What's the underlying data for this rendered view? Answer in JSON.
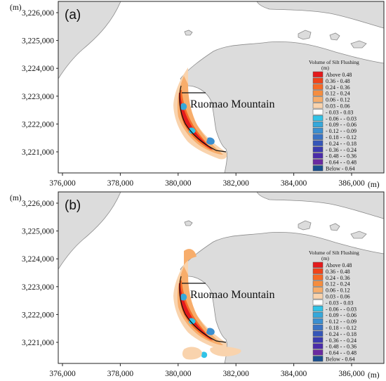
{
  "panels": [
    {
      "label": "(a)",
      "place_label": "Ruomao Mountain",
      "y_unit": "(m)",
      "x_unit": "(m)",
      "y_ticks": [
        "3,226,000",
        "3,225,000",
        "3,224,000",
        "3,223,000",
        "3,222,000",
        "3,221,000"
      ],
      "x_ticks": [
        "376,000",
        "378,000",
        "380,000",
        "382,000",
        "384,000",
        "386,000"
      ]
    },
    {
      "label": "(b)",
      "place_label": "Ruomao Mountain",
      "y_unit": "(m)",
      "x_unit": "(m)",
      "y_ticks": [
        "3,226,000",
        "3,225,000",
        "3,224,000",
        "3,223,000",
        "3,222,000",
        "3,221,000"
      ],
      "x_ticks": [
        "376,000",
        "378,000",
        "380,000",
        "382,000",
        "384,000",
        "386,000"
      ]
    }
  ],
  "legend": {
    "title": "Volume of Silt Flushing",
    "unit": "(m)",
    "items": [
      {
        "label": "Above 0.48",
        "color": "#e41a1c"
      },
      {
        "label": "0.36 - 0.48",
        "color": "#f0431a"
      },
      {
        "label": "0.24 - 0.36",
        "color": "#f66a26"
      },
      {
        "label": "0.12 - 0.24",
        "color": "#f58d3f"
      },
      {
        "label": "0.06 - 0.12",
        "color": "#f7ad6b"
      },
      {
        "label": "0.03 - 0.06",
        "color": "#f9d3ad"
      },
      {
        "label": "- 0.03 - 0.03",
        "color": "#ffffff"
      },
      {
        "label": "- 0.06 - - 0.03",
        "color": "#31c3e7"
      },
      {
        "label": "- 0.09 - - 0.06",
        "color": "#36a8db"
      },
      {
        "label": "- 0.12 - - 0.09",
        "color": "#3b8fd0"
      },
      {
        "label": "- 0.18 - - 0.12",
        "color": "#3a73c4"
      },
      {
        "label": "- 0.24 - - 0.18",
        "color": "#3556b8"
      },
      {
        "label": "- 0.36 - - 0.24",
        "color": "#3a3ab0"
      },
      {
        "label": "- 0.48 - - 0.36",
        "color": "#4b2ca8"
      },
      {
        "label": "- 0.64 - - 0.48",
        "color": "#6a2aa0"
      },
      {
        "label": "Below - 0.64",
        "color": "#1a4f8f"
      }
    ]
  },
  "colors": {
    "land": "#dcdcdc",
    "land_edge": "#8a8a8a",
    "frame": "#222222"
  }
}
